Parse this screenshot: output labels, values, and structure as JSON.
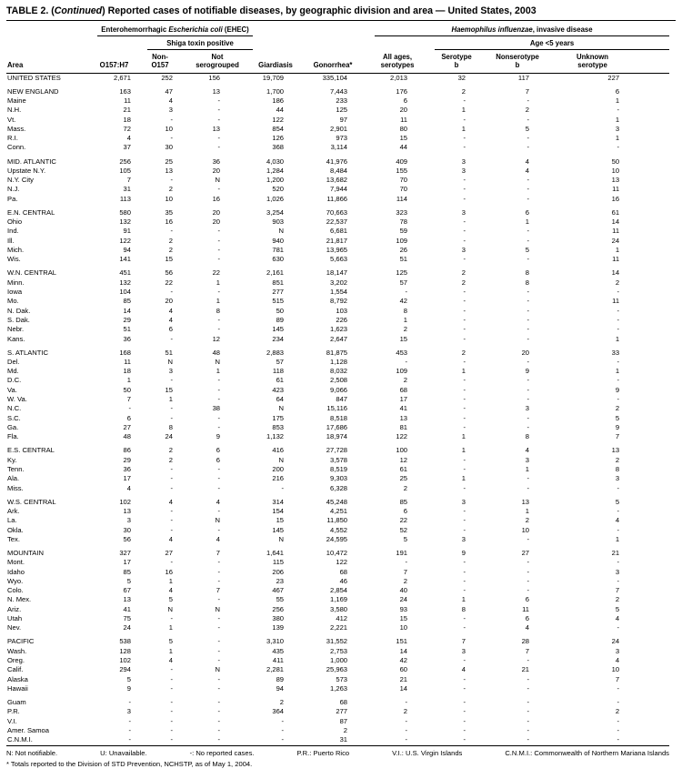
{
  "title": {
    "pre": "TABLE 2. (",
    "continued": "Continued",
    "post": ") Reported cases of notifiable diseases, by geographic division and area — United States, 2003"
  },
  "header": {
    "ehec_group": {
      "pre": "Enterohemorrhagic ",
      "italic": "Escherichia coli",
      "post": " (EHEC)"
    },
    "shiga_sub": "Shiga toxin positive",
    "hib_group": {
      "italic": "Haemophilus influenzae",
      "post": ", invasive disease"
    },
    "age_sub": "Age <5 years",
    "columns": [
      "Area",
      "O157:H7",
      "Non-\nO157",
      "Not\nserogrouped",
      "Giardiasis",
      "Gonorrhea*",
      "All ages,\nserotypes",
      "Serotype\nb",
      "Nonserotype\nb",
      "Unknown\nserotype"
    ]
  },
  "sections": [
    {
      "rows": [
        {
          "area": "UNITED STATES",
          "values": [
            "2,671",
            "252",
            "156",
            "19,709",
            "335,104",
            "2,013",
            "32",
            "117",
            "227"
          ]
        }
      ]
    },
    {
      "rows": [
        {
          "area": "NEW ENGLAND",
          "values": [
            "163",
            "47",
            "13",
            "1,700",
            "7,443",
            "176",
            "2",
            "7",
            "6"
          ]
        },
        {
          "area": "Maine",
          "values": [
            "11",
            "4",
            "-",
            "186",
            "233",
            "6",
            "-",
            "-",
            "1"
          ]
        },
        {
          "area": "N.H.",
          "values": [
            "21",
            "3",
            "-",
            "44",
            "125",
            "20",
            "1",
            "2",
            "-"
          ]
        },
        {
          "area": "Vt.",
          "values": [
            "18",
            "-",
            "-",
            "122",
            "97",
            "11",
            "-",
            "-",
            "1"
          ]
        },
        {
          "area": "Mass.",
          "values": [
            "72",
            "10",
            "13",
            "854",
            "2,901",
            "80",
            "1",
            "5",
            "3"
          ]
        },
        {
          "area": "R.I.",
          "values": [
            "4",
            "-",
            "-",
            "126",
            "973",
            "15",
            "-",
            "-",
            "1"
          ]
        },
        {
          "area": "Conn.",
          "values": [
            "37",
            "30",
            "-",
            "368",
            "3,114",
            "44",
            "-",
            "-",
            "-"
          ]
        }
      ]
    },
    {
      "rows": [
        {
          "area": "MID. ATLANTIC",
          "values": [
            "256",
            "25",
            "36",
            "4,030",
            "41,976",
            "409",
            "3",
            "4",
            "50"
          ]
        },
        {
          "area": "Upstate N.Y.",
          "values": [
            "105",
            "13",
            "20",
            "1,284",
            "8,484",
            "155",
            "3",
            "4",
            "10"
          ]
        },
        {
          "area": "N.Y. City",
          "values": [
            "7",
            "-",
            "N",
            "1,200",
            "13,682",
            "70",
            "-",
            "-",
            "13"
          ]
        },
        {
          "area": "N.J.",
          "values": [
            "31",
            "2",
            "-",
            "520",
            "7,944",
            "70",
            "-",
            "-",
            "11"
          ]
        },
        {
          "area": "Pa.",
          "values": [
            "113",
            "10",
            "16",
            "1,026",
            "11,866",
            "114",
            "-",
            "-",
            "16"
          ]
        }
      ]
    },
    {
      "rows": [
        {
          "area": "E.N. CENTRAL",
          "values": [
            "580",
            "35",
            "20",
            "3,254",
            "70,663",
            "323",
            "3",
            "6",
            "61"
          ]
        },
        {
          "area": "Ohio",
          "values": [
            "132",
            "16",
            "20",
            "903",
            "22,537",
            "78",
            "-",
            "1",
            "14"
          ]
        },
        {
          "area": "Ind.",
          "values": [
            "91",
            "-",
            "-",
            "N",
            "6,681",
            "59",
            "-",
            "-",
            "11"
          ]
        },
        {
          "area": "Ill.",
          "values": [
            "122",
            "2",
            "-",
            "940",
            "21,817",
            "109",
            "-",
            "-",
            "24"
          ]
        },
        {
          "area": "Mich.",
          "values": [
            "94",
            "2",
            "-",
            "781",
            "13,965",
            "26",
            "3",
            "5",
            "1"
          ]
        },
        {
          "area": "Wis.",
          "values": [
            "141",
            "15",
            "-",
            "630",
            "5,663",
            "51",
            "-",
            "-",
            "11"
          ]
        }
      ]
    },
    {
      "rows": [
        {
          "area": "W.N. CENTRAL",
          "values": [
            "451",
            "56",
            "22",
            "2,161",
            "18,147",
            "125",
            "2",
            "8",
            "14"
          ]
        },
        {
          "area": "Minn.",
          "values": [
            "132",
            "22",
            "1",
            "851",
            "3,202",
            "57",
            "2",
            "8",
            "2"
          ]
        },
        {
          "area": "Iowa",
          "values": [
            "104",
            "-",
            "-",
            "277",
            "1,554",
            "-",
            "-",
            "-",
            "-"
          ]
        },
        {
          "area": "Mo.",
          "values": [
            "85",
            "20",
            "1",
            "515",
            "8,792",
            "42",
            "-",
            "-",
            "11"
          ]
        },
        {
          "area": "N. Dak.",
          "values": [
            "14",
            "4",
            "8",
            "50",
            "103",
            "8",
            "-",
            "-",
            "-"
          ]
        },
        {
          "area": "S. Dak.",
          "values": [
            "29",
            "4",
            "-",
            "89",
            "226",
            "1",
            "-",
            "-",
            "-"
          ]
        },
        {
          "area": "Nebr.",
          "values": [
            "51",
            "6",
            "-",
            "145",
            "1,623",
            "2",
            "-",
            "-",
            "-"
          ]
        },
        {
          "area": "Kans.",
          "values": [
            "36",
            "-",
            "12",
            "234",
            "2,647",
            "15",
            "-",
            "-",
            "1"
          ]
        }
      ]
    },
    {
      "rows": [
        {
          "area": "S. ATLANTIC",
          "values": [
            "168",
            "51",
            "48",
            "2,883",
            "81,875",
            "453",
            "2",
            "20",
            "33"
          ]
        },
        {
          "area": "Del.",
          "values": [
            "11",
            "N",
            "N",
            "57",
            "1,128",
            "-",
            "-",
            "-",
            "-"
          ]
        },
        {
          "area": "Md.",
          "values": [
            "18",
            "3",
            "1",
            "118",
            "8,032",
            "109",
            "1",
            "9",
            "1"
          ]
        },
        {
          "area": "D.C.",
          "values": [
            "1",
            "-",
            "-",
            "61",
            "2,508",
            "2",
            "-",
            "-",
            "-"
          ]
        },
        {
          "area": "Va.",
          "values": [
            "50",
            "15",
            "-",
            "423",
            "9,066",
            "68",
            "-",
            "-",
            "9"
          ]
        },
        {
          "area": "W. Va.",
          "values": [
            "7",
            "1",
            "-",
            "64",
            "847",
            "17",
            "-",
            "-",
            "-"
          ]
        },
        {
          "area": "N.C.",
          "values": [
            "-",
            "-",
            "38",
            "N",
            "15,116",
            "41",
            "-",
            "3",
            "2"
          ]
        },
        {
          "area": "S.C.",
          "values": [
            "6",
            "-",
            "-",
            "175",
            "8,518",
            "13",
            "-",
            "-",
            "5"
          ]
        },
        {
          "area": "Ga.",
          "values": [
            "27",
            "8",
            "-",
            "853",
            "17,686",
            "81",
            "-",
            "-",
            "9"
          ]
        },
        {
          "area": "Fla.",
          "values": [
            "48",
            "24",
            "9",
            "1,132",
            "18,974",
            "122",
            "1",
            "8",
            "7"
          ]
        }
      ]
    },
    {
      "rows": [
        {
          "area": "E.S. CENTRAL",
          "values": [
            "86",
            "2",
            "6",
            "416",
            "27,728",
            "100",
            "1",
            "4",
            "13"
          ]
        },
        {
          "area": "Ky.",
          "values": [
            "29",
            "2",
            "6",
            "N",
            "3,578",
            "12",
            "-",
            "3",
            "2"
          ]
        },
        {
          "area": "Tenn.",
          "values": [
            "36",
            "-",
            "-",
            "200",
            "8,519",
            "61",
            "-",
            "1",
            "8"
          ]
        },
        {
          "area": "Ala.",
          "values": [
            "17",
            "-",
            "-",
            "216",
            "9,303",
            "25",
            "1",
            "-",
            "3"
          ]
        },
        {
          "area": "Miss.",
          "values": [
            "4",
            "-",
            "-",
            "-",
            "6,328",
            "2",
            "-",
            "-",
            "-"
          ]
        }
      ]
    },
    {
      "rows": [
        {
          "area": "W.S. CENTRAL",
          "values": [
            "102",
            "4",
            "4",
            "314",
            "45,248",
            "85",
            "3",
            "13",
            "5"
          ]
        },
        {
          "area": "Ark.",
          "values": [
            "13",
            "-",
            "-",
            "154",
            "4,251",
            "6",
            "-",
            "1",
            "-"
          ]
        },
        {
          "area": "La.",
          "values": [
            "3",
            "-",
            "N",
            "15",
            "11,850",
            "22",
            "-",
            "2",
            "4"
          ]
        },
        {
          "area": "Okla.",
          "values": [
            "30",
            "-",
            "-",
            "145",
            "4,552",
            "52",
            "-",
            "10",
            "-"
          ]
        },
        {
          "area": "Tex.",
          "values": [
            "56",
            "4",
            "4",
            "N",
            "24,595",
            "5",
            "3",
            "-",
            "1"
          ]
        }
      ]
    },
    {
      "rows": [
        {
          "area": "MOUNTAIN",
          "values": [
            "327",
            "27",
            "7",
            "1,641",
            "10,472",
            "191",
            "9",
            "27",
            "21"
          ]
        },
        {
          "area": "Mont.",
          "values": [
            "17",
            "-",
            "-",
            "115",
            "122",
            "-",
            "-",
            "-",
            "-"
          ]
        },
        {
          "area": "Idaho",
          "values": [
            "85",
            "16",
            "-",
            "206",
            "68",
            "7",
            "-",
            "-",
            "3"
          ]
        },
        {
          "area": "Wyo.",
          "values": [
            "5",
            "1",
            "-",
            "23",
            "46",
            "2",
            "-",
            "-",
            "-"
          ]
        },
        {
          "area": "Colo.",
          "values": [
            "67",
            "4",
            "7",
            "467",
            "2,854",
            "40",
            "-",
            "-",
            "7"
          ]
        },
        {
          "area": "N. Mex.",
          "values": [
            "13",
            "5",
            "-",
            "55",
            "1,169",
            "24",
            "1",
            "6",
            "2"
          ]
        },
        {
          "area": "Ariz.",
          "values": [
            "41",
            "N",
            "N",
            "256",
            "3,580",
            "93",
            "8",
            "11",
            "5"
          ]
        },
        {
          "area": "Utah",
          "values": [
            "75",
            "-",
            "-",
            "380",
            "412",
            "15",
            "-",
            "6",
            "4"
          ]
        },
        {
          "area": "Nev.",
          "values": [
            "24",
            "1",
            "-",
            "139",
            "2,221",
            "10",
            "-",
            "4",
            "-"
          ]
        }
      ]
    },
    {
      "rows": [
        {
          "area": "PACIFIC",
          "values": [
            "538",
            "5",
            "-",
            "3,310",
            "31,552",
            "151",
            "7",
            "28",
            "24"
          ]
        },
        {
          "area": "Wash.",
          "values": [
            "128",
            "1",
            "-",
            "435",
            "2,753",
            "14",
            "3",
            "7",
            "3"
          ]
        },
        {
          "area": "Oreg.",
          "values": [
            "102",
            "4",
            "-",
            "411",
            "1,000",
            "42",
            "-",
            "-",
            "4"
          ]
        },
        {
          "area": "Calif.",
          "values": [
            "294",
            "-",
            "N",
            "2,281",
            "25,963",
            "60",
            "4",
            "21",
            "10"
          ]
        },
        {
          "area": "Alaska",
          "values": [
            "5",
            "-",
            "-",
            "89",
            "573",
            "21",
            "-",
            "-",
            "7"
          ]
        },
        {
          "area": "Hawaii",
          "values": [
            "9",
            "-",
            "-",
            "94",
            "1,263",
            "14",
            "-",
            "-",
            "-"
          ]
        }
      ]
    },
    {
      "rows": [
        {
          "area": "Guam",
          "values": [
            "-",
            "-",
            "-",
            "2",
            "68",
            "-",
            "-",
            "-",
            "-"
          ]
        },
        {
          "area": "P.R.",
          "values": [
            "3",
            "-",
            "-",
            "364",
            "277",
            "2",
            "-",
            "-",
            "2"
          ]
        },
        {
          "area": "V.I.",
          "values": [
            "-",
            "-",
            "-",
            "-",
            "87",
            "-",
            "-",
            "-",
            "-"
          ]
        },
        {
          "area": "Amer. Samoa",
          "values": [
            "-",
            "-",
            "-",
            "-",
            "2",
            "-",
            "-",
            "-",
            "-"
          ]
        },
        {
          "area": "C.N.M.I.",
          "values": [
            "-",
            "-",
            "-",
            "-",
            "31",
            "-",
            "-",
            "-",
            "-"
          ]
        }
      ]
    }
  ],
  "footnotes": {
    "legend": [
      "N: Not notifiable.",
      "U: Unavailable.",
      "-: No reported cases.",
      "P.R.: Puerto Rico",
      "V.I.: U.S. Virgin Islands",
      "C.N.M.I.: Commonwealth of Northern Mariana Islands"
    ],
    "asterisk": "* Totals reported to the Division of STD Prevention, NCHSTP, as of May 1, 2004."
  }
}
